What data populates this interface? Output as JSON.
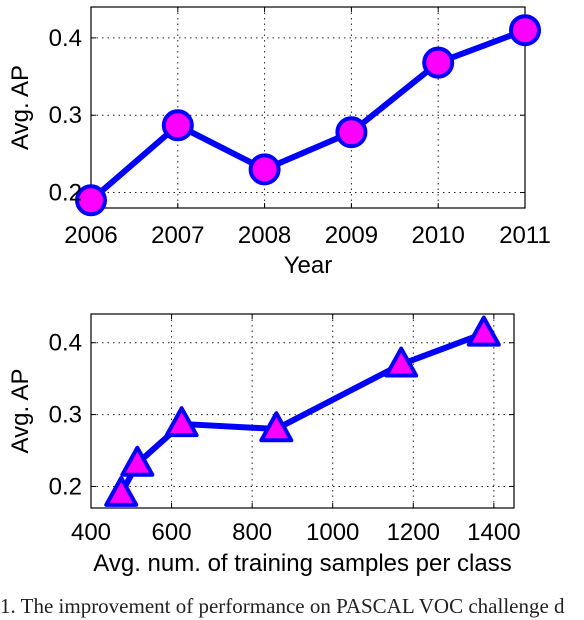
{
  "colors": {
    "line": "#0000ff",
    "marker_fill": "#ff00ff",
    "marker_edge": "#0000ff"
  },
  "chart_data": [
    {
      "type": "line",
      "marker": "circle",
      "x": [
        2006,
        2007,
        2008,
        2009,
        2010,
        2011
      ],
      "y": [
        0.19,
        0.287,
        0.23,
        0.278,
        0.368,
        0.41
      ],
      "xlabel": "Year",
      "ylabel": "Avg. AP",
      "xlim": [
        2006,
        2011
      ],
      "ylim": [
        0.18,
        0.44
      ],
      "xticks": [
        2006,
        2007,
        2008,
        2009,
        2010,
        2011
      ],
      "xtick_labels": [
        "2006",
        "2007",
        "2008",
        "2009",
        "2010",
        "2011"
      ],
      "yticks": [
        0.2,
        0.3,
        0.4
      ],
      "ytick_labels": [
        "0.2",
        "0.3",
        "0.4"
      ],
      "grid": true
    },
    {
      "type": "line",
      "marker": "triangle",
      "x": [
        475,
        515,
        625,
        860,
        1170,
        1375
      ],
      "y": [
        0.19,
        0.232,
        0.287,
        0.28,
        0.37,
        0.413
      ],
      "xlabel": "Avg. num. of training samples per class",
      "ylabel": "Avg. AP",
      "xlim": [
        400,
        1450
      ],
      "ylim": [
        0.17,
        0.44
      ],
      "xticks": [
        400,
        600,
        800,
        1000,
        1200,
        1400
      ],
      "xtick_labels": [
        "400",
        "600",
        "800",
        "1000",
        "1200",
        "1400"
      ],
      "yticks": [
        0.2,
        0.3,
        0.4
      ],
      "ytick_labels": [
        "0.2",
        "0.3",
        "0.4"
      ],
      "grid": true
    }
  ],
  "caption": "1. The improvement of performance on PASCAL VOC challenge d"
}
